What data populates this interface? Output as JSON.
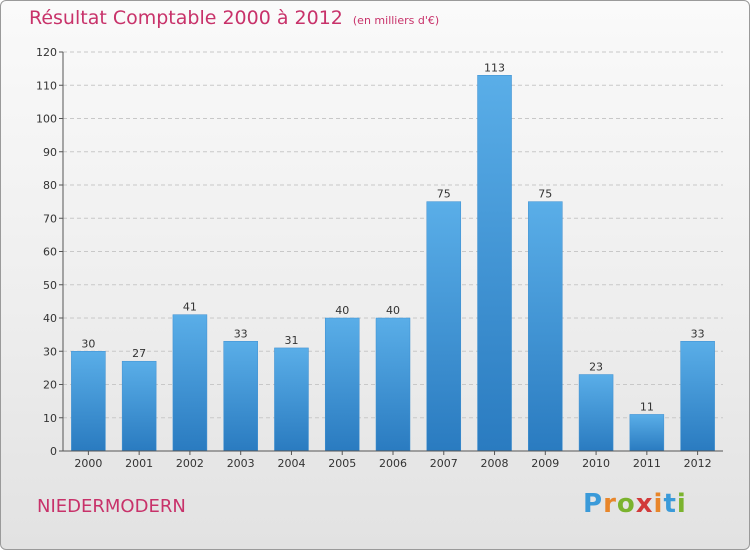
{
  "title": "Résultat Comptable 2000 à 2012",
  "subtitle": "(en milliers d'€)",
  "place_name": "NIEDERMODERN",
  "logo": {
    "text": "Proxiti",
    "letters": [
      "P",
      "r",
      "o",
      "x",
      "i",
      "t",
      "i"
    ]
  },
  "colors": {
    "accent": "#c8326a",
    "bar_top": "#5aaee8",
    "bar_bottom": "#2a7bc0",
    "grid": "#c8c8c8"
  },
  "chart_data": {
    "type": "bar",
    "title": "Résultat Comptable 2000 à 2012",
    "xlabel": "",
    "ylabel": "(en milliers d'€)",
    "categories": [
      "2000",
      "2001",
      "2002",
      "2003",
      "2004",
      "2005",
      "2006",
      "2007",
      "2008",
      "2009",
      "2010",
      "2011",
      "2012"
    ],
    "values": [
      30,
      27,
      41,
      33,
      31,
      40,
      40,
      75,
      113,
      75,
      23,
      11,
      33
    ],
    "ylim": [
      0,
      120
    ],
    "yticks": [
      0,
      10,
      20,
      30,
      40,
      50,
      60,
      70,
      80,
      90,
      100,
      110,
      120
    ],
    "grid": true
  }
}
